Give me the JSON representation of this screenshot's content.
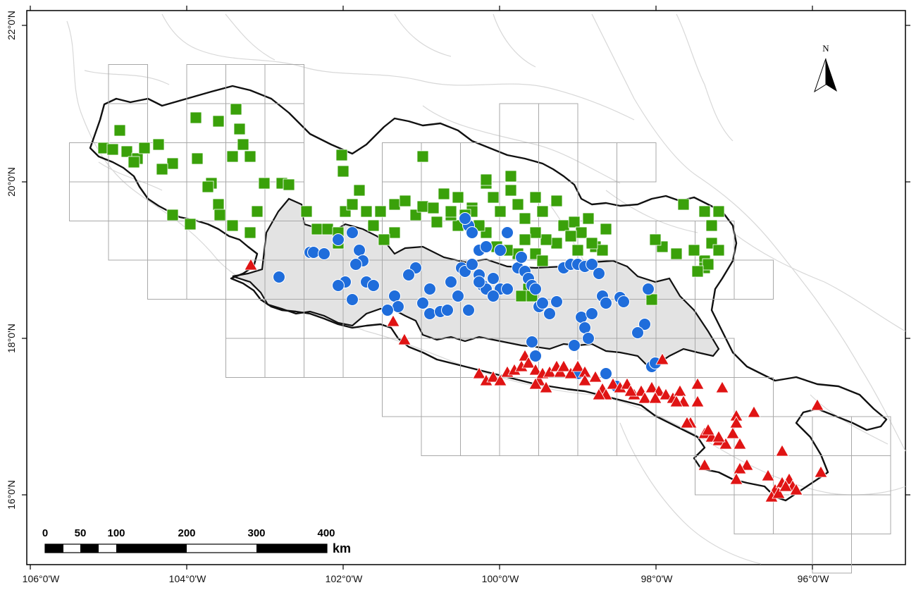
{
  "axes": {
    "lon_labels": [
      "106°0'W",
      "104°0'W",
      "102°0'W",
      "100°0'W",
      "98°0'W",
      "96°0'W"
    ],
    "lat_labels": [
      "22°0'N",
      "20°0'N",
      "18°0'N",
      "16°0'N"
    ]
  },
  "north_arrow": {
    "label": "N",
    "icon": "north-arrow-icon"
  },
  "scale_bar": {
    "labels": [
      "0",
      "50",
      "100",
      "200",
      "300",
      "400"
    ],
    "unit": "km"
  },
  "map_data": {
    "extent": {
      "lon": [
        -106,
        -95
      ],
      "lat": [
        15.3,
        22.2
      ]
    },
    "series": [
      {
        "marker": "square",
        "color": "#3aa10a",
        "icon": "green-square-marker"
      },
      {
        "marker": "circle",
        "color": "#1f6ddb",
        "icon": "blue-circle-marker"
      },
      {
        "marker": "triangle",
        "color": "#e01414",
        "icon": "red-triangle-marker"
      }
    ],
    "region_fill": "#e3e3e3",
    "outline_color": "#111111",
    "grid_color": "#a8a8a8"
  }
}
